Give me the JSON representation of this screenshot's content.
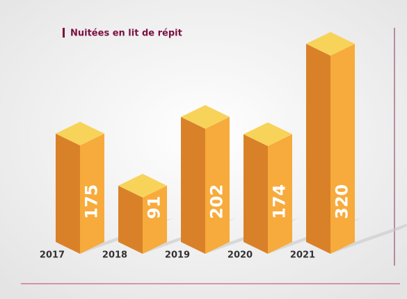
{
  "chart_data": {
    "type": "bar",
    "title": "Nuitées en lit de répit",
    "categories": [
      "2017",
      "2018",
      "2019",
      "2020",
      "2021"
    ],
    "values": [
      175,
      91,
      202,
      174,
      320
    ],
    "colors": {
      "left": "#d98129",
      "right": "#f7ab3c",
      "top": "#f8d35a"
    }
  }
}
